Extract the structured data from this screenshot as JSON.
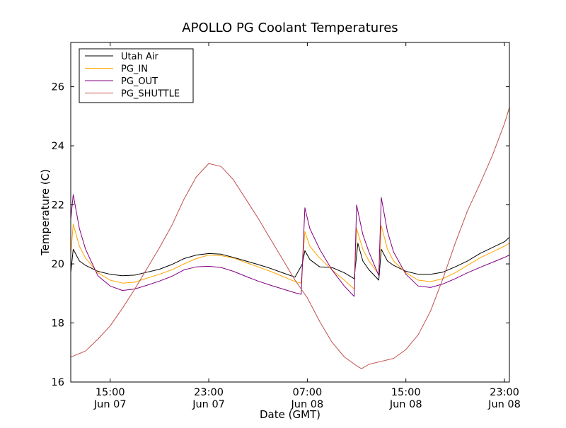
{
  "chart_data": {
    "type": "line",
    "title": "APOLLO PG Coolant Temperatures",
    "xlabel": "Date (GMT)",
    "ylabel": "Temperature (C)",
    "x_unit": "hours since Jun 07 00:00 GMT",
    "xlim": [
      11.8,
      47.4
    ],
    "ylim": [
      16,
      27.5
    ],
    "yticks": [
      16,
      18,
      20,
      22,
      24,
      26
    ],
    "xticks": [
      {
        "x": 15,
        "time": "15:00",
        "date": "Jun 07"
      },
      {
        "x": 23,
        "time": "23:00",
        "date": "Jun 07"
      },
      {
        "x": 31,
        "time": "07:00",
        "date": "Jun 08"
      },
      {
        "x": 39,
        "time": "15:00",
        "date": "Jun 08"
      },
      {
        "x": 47,
        "time": "23:00",
        "date": "Jun 08"
      }
    ],
    "grid": false,
    "legend_position": "top-left",
    "series": [
      {
        "name": "Utah Air",
        "color": "#000000",
        "points": [
          [
            11.8,
            19.7
          ],
          [
            12.0,
            20.5
          ],
          [
            12.5,
            20.1
          ],
          [
            13.0,
            19.95
          ],
          [
            14.0,
            19.75
          ],
          [
            15.0,
            19.65
          ],
          [
            16.0,
            19.6
          ],
          [
            17.0,
            19.62
          ],
          [
            18.0,
            19.72
          ],
          [
            19.0,
            19.82
          ],
          [
            20.0,
            19.98
          ],
          [
            21.0,
            20.18
          ],
          [
            22.0,
            20.3
          ],
          [
            23.0,
            20.35
          ],
          [
            24.0,
            20.33
          ],
          [
            25.0,
            20.22
          ],
          [
            26.0,
            20.1
          ],
          [
            27.0,
            19.98
          ],
          [
            28.0,
            19.85
          ],
          [
            29.0,
            19.7
          ],
          [
            30.0,
            19.55
          ],
          [
            30.6,
            20.0
          ],
          [
            30.8,
            20.45
          ],
          [
            31.2,
            20.15
          ],
          [
            32.0,
            19.9
          ],
          [
            33.0,
            19.88
          ],
          [
            34.0,
            19.7
          ],
          [
            34.8,
            19.5
          ],
          [
            35.1,
            20.7
          ],
          [
            35.5,
            20.1
          ],
          [
            36.0,
            19.8
          ],
          [
            36.8,
            19.45
          ],
          [
            37.0,
            20.5
          ],
          [
            37.5,
            20.1
          ],
          [
            38.0,
            19.95
          ],
          [
            39.0,
            19.75
          ],
          [
            40.0,
            19.65
          ],
          [
            41.0,
            19.65
          ],
          [
            42.0,
            19.72
          ],
          [
            43.0,
            19.9
          ],
          [
            44.0,
            20.1
          ],
          [
            45.0,
            20.35
          ],
          [
            46.0,
            20.55
          ],
          [
            47.0,
            20.75
          ],
          [
            47.4,
            20.9
          ]
        ]
      },
      {
        "name": "PG_IN",
        "color": "#ffa500",
        "points": [
          [
            11.8,
            20.3
          ],
          [
            12.0,
            21.35
          ],
          [
            12.5,
            20.6
          ],
          [
            13.0,
            20.2
          ],
          [
            14.0,
            19.7
          ],
          [
            15.0,
            19.45
          ],
          [
            16.0,
            19.35
          ],
          [
            17.0,
            19.38
          ],
          [
            18.0,
            19.52
          ],
          [
            19.0,
            19.65
          ],
          [
            20.0,
            19.8
          ],
          [
            21.0,
            20.0
          ],
          [
            22.0,
            20.18
          ],
          [
            23.0,
            20.3
          ],
          [
            24.0,
            20.28
          ],
          [
            25.0,
            20.2
          ],
          [
            26.0,
            20.05
          ],
          [
            27.0,
            19.9
          ],
          [
            28.0,
            19.75
          ],
          [
            29.0,
            19.58
          ],
          [
            30.0,
            19.4
          ],
          [
            30.5,
            19.35
          ],
          [
            30.8,
            21.1
          ],
          [
            31.2,
            20.6
          ],
          [
            32.0,
            20.2
          ],
          [
            33.0,
            19.8
          ],
          [
            34.0,
            19.45
          ],
          [
            34.8,
            19.15
          ],
          [
            35.0,
            21.2
          ],
          [
            35.5,
            20.5
          ],
          [
            36.0,
            20.1
          ],
          [
            36.8,
            19.65
          ],
          [
            37.0,
            21.3
          ],
          [
            37.5,
            20.5
          ],
          [
            38.0,
            20.1
          ],
          [
            39.0,
            19.7
          ],
          [
            40.0,
            19.45
          ],
          [
            41.0,
            19.4
          ],
          [
            42.0,
            19.5
          ],
          [
            43.0,
            19.7
          ],
          [
            44.0,
            19.95
          ],
          [
            45.0,
            20.2
          ],
          [
            46.0,
            20.4
          ],
          [
            47.0,
            20.6
          ],
          [
            47.4,
            20.7
          ]
        ]
      },
      {
        "name": "PG_OUT",
        "color": "#800080",
        "points": [
          [
            11.8,
            21.5
          ],
          [
            12.0,
            22.35
          ],
          [
            12.5,
            21.2
          ],
          [
            13.0,
            20.5
          ],
          [
            14.0,
            19.6
          ],
          [
            15.0,
            19.25
          ],
          [
            16.0,
            19.1
          ],
          [
            17.0,
            19.15
          ],
          [
            18.0,
            19.28
          ],
          [
            19.0,
            19.42
          ],
          [
            20.0,
            19.58
          ],
          [
            21.0,
            19.8
          ],
          [
            22.0,
            19.9
          ],
          [
            23.0,
            19.92
          ],
          [
            24.0,
            19.88
          ],
          [
            25.0,
            19.75
          ],
          [
            26.0,
            19.58
          ],
          [
            27.0,
            19.42
          ],
          [
            28.0,
            19.28
          ],
          [
            29.0,
            19.15
          ],
          [
            30.0,
            19.02
          ],
          [
            30.5,
            18.97
          ],
          [
            30.8,
            21.9
          ],
          [
            31.2,
            21.2
          ],
          [
            32.0,
            20.5
          ],
          [
            33.0,
            19.8
          ],
          [
            34.0,
            19.25
          ],
          [
            34.8,
            18.9
          ],
          [
            35.0,
            22.0
          ],
          [
            35.5,
            21.0
          ],
          [
            36.0,
            20.4
          ],
          [
            36.8,
            19.6
          ],
          [
            37.0,
            22.25
          ],
          [
            37.5,
            21.1
          ],
          [
            38.0,
            20.4
          ],
          [
            39.0,
            19.65
          ],
          [
            40.0,
            19.25
          ],
          [
            41.0,
            19.2
          ],
          [
            42.0,
            19.32
          ],
          [
            43.0,
            19.5
          ],
          [
            44.0,
            19.7
          ],
          [
            45.0,
            19.88
          ],
          [
            46.0,
            20.05
          ],
          [
            47.0,
            20.22
          ],
          [
            47.4,
            20.3
          ]
        ]
      },
      {
        "name": "PG_SHUTTLE",
        "color": "#c0504d",
        "points": [
          [
            11.8,
            16.85
          ],
          [
            12.0,
            16.88
          ],
          [
            13.0,
            17.05
          ],
          [
            14.0,
            17.45
          ],
          [
            15.0,
            17.9
          ],
          [
            16.0,
            18.5
          ],
          [
            17.0,
            19.15
          ],
          [
            18.0,
            19.85
          ],
          [
            19.0,
            20.55
          ],
          [
            20.0,
            21.3
          ],
          [
            21.0,
            22.2
          ],
          [
            22.0,
            22.95
          ],
          [
            23.0,
            23.4
          ],
          [
            24.0,
            23.3
          ],
          [
            25.0,
            22.85
          ],
          [
            26.0,
            22.2
          ],
          [
            27.0,
            21.55
          ],
          [
            28.0,
            20.85
          ],
          [
            29.0,
            20.15
          ],
          [
            30.0,
            19.45
          ],
          [
            31.0,
            18.85
          ],
          [
            32.0,
            18.05
          ],
          [
            33.0,
            17.35
          ],
          [
            34.0,
            16.85
          ],
          [
            35.0,
            16.55
          ],
          [
            35.4,
            16.45
          ],
          [
            36.0,
            16.6
          ],
          [
            37.0,
            16.7
          ],
          [
            38.0,
            16.8
          ],
          [
            39.0,
            17.1
          ],
          [
            40.0,
            17.6
          ],
          [
            41.0,
            18.4
          ],
          [
            42.0,
            19.5
          ],
          [
            43.0,
            20.7
          ],
          [
            44.0,
            21.8
          ],
          [
            45.0,
            22.7
          ],
          [
            46.0,
            23.65
          ],
          [
            47.0,
            24.75
          ],
          [
            47.4,
            25.3
          ]
        ]
      }
    ]
  }
}
